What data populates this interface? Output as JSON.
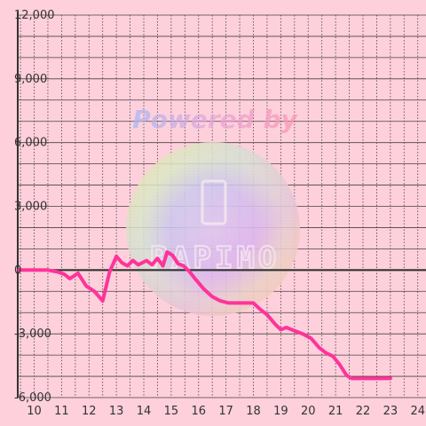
{
  "watermark": {
    "text": "Powered by",
    "brand": "PAPIMO"
  },
  "colors": {
    "background": "#fdd0dc",
    "grid": "#4a4040",
    "axis": "#333333",
    "line": "#ff3399",
    "text": "#333333"
  },
  "chart_data": {
    "type": "line",
    "title": "",
    "xlabel": "",
    "ylabel": "",
    "xlim": [
      9.4,
      24.3
    ],
    "ylim": [
      -6000,
      12000
    ],
    "x_ticks": [
      "10",
      "11",
      "12",
      "13",
      "14",
      "15",
      "16",
      "17",
      "18",
      "19",
      "20",
      "21",
      "22",
      "23",
      "24"
    ],
    "y_ticks": [
      "12,000",
      "9,000",
      "6,000",
      "3,000",
      "0",
      "-3,000",
      "-6,000"
    ],
    "grid": true,
    "series": [
      {
        "x": [
          9.45,
          10.5,
          10.9,
          11.1,
          11.3,
          11.6,
          11.9,
          12.2,
          12.5,
          12.75,
          13.0,
          13.2,
          13.4,
          13.6,
          13.8,
          14.1,
          14.3,
          14.5,
          14.7,
          14.85,
          15.05,
          15.25,
          15.45,
          15.65,
          15.9,
          16.2,
          16.5,
          16.8,
          17.1,
          17.4,
          17.7,
          18.0,
          18.25,
          18.5,
          18.8,
          19.0,
          19.2,
          19.5,
          19.8,
          20.1,
          20.4,
          20.65,
          20.9,
          21.15,
          21.4,
          21.6,
          22.0,
          22.5,
          23.0
        ],
        "y": [
          0,
          0,
          -100,
          -200,
          -400,
          -150,
          -750,
          -1000,
          -1450,
          -100,
          650,
          350,
          200,
          450,
          250,
          450,
          250,
          550,
          200,
          850,
          700,
          300,
          200,
          -50,
          -450,
          -900,
          -1250,
          -1450,
          -1550,
          -1550,
          -1550,
          -1550,
          -1850,
          -2100,
          -2550,
          -2800,
          -2700,
          -2850,
          -3000,
          -3200,
          -3650,
          -3900,
          -4050,
          -4450,
          -4950,
          -5100,
          -5100,
          -5100,
          -5100
        ]
      }
    ]
  }
}
